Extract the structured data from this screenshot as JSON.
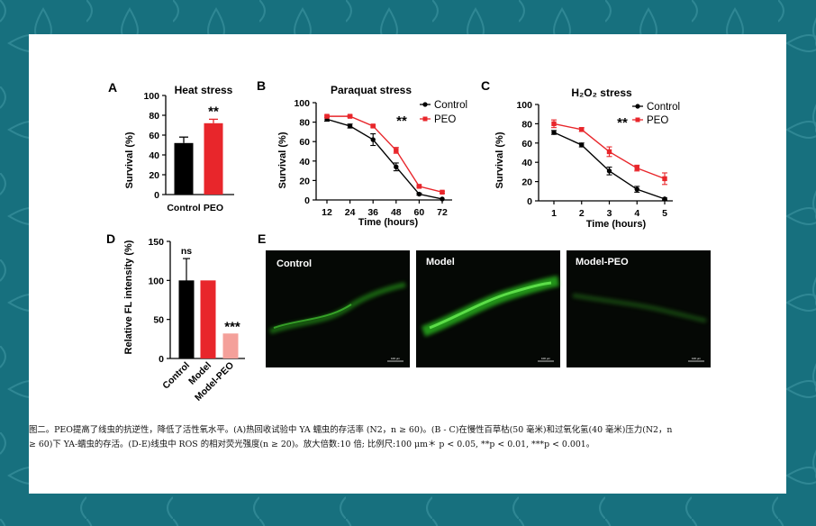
{
  "figure": {
    "panels": {
      "A": {
        "label": "A",
        "title": "Heat stress",
        "ylabel": "Survival (%)",
        "yticks": [
          "0",
          "20",
          "40",
          "60",
          "80",
          "100"
        ],
        "sig": "**"
      },
      "B": {
        "label": "B",
        "title": "Paraquat stress",
        "ylabel": "Survival (%)",
        "xlabel": "Time (hours)",
        "yticks": [
          "0",
          "20",
          "40",
          "60",
          "80",
          "100"
        ],
        "xticks": [
          "12",
          "24",
          "36",
          "48",
          "60",
          "72"
        ],
        "sig": "**",
        "legend": [
          "Control",
          "PEO"
        ]
      },
      "C": {
        "label": "C",
        "title": "H₂O₂ stress",
        "ylabel": "Survival (%)",
        "xlabel": "Time (hours)",
        "yticks": [
          "0",
          "20",
          "40",
          "60",
          "80",
          "100"
        ],
        "xticks": [
          "1",
          "2",
          "3",
          "4",
          "5"
        ],
        "sig": "**",
        "legend": [
          "Control",
          "PEO"
        ]
      },
      "D": {
        "label": "D",
        "ylabel": "Relative FL intensity (%)",
        "yticks": [
          "0",
          "50",
          "100",
          "150"
        ],
        "sigs": [
          "ns",
          "***"
        ]
      },
      "E": {
        "label": "E",
        "images": [
          "Control",
          "Model",
          "Model-PEO"
        ],
        "scale_text": "100 μm"
      }
    },
    "colors": {
      "control": "#000000",
      "peo": "#e8262b",
      "model_peo": "#f4a09a",
      "micro_bg": "#050805",
      "fluorescence": "#39d22a"
    }
  },
  "chart_data": [
    {
      "panel": "A",
      "type": "bar",
      "title": "Heat stress",
      "ylabel": "Survival (%)",
      "ylim": [
        0,
        100
      ],
      "categories": [
        "Control",
        "PEO"
      ],
      "values": [
        52,
        72
      ],
      "errors": [
        6,
        4
      ],
      "colors": [
        "#000000",
        "#e8262b"
      ],
      "annotation": "**"
    },
    {
      "panel": "B",
      "type": "line",
      "title": "Paraquat stress",
      "xlabel": "Time (hours)",
      "ylabel": "Survival (%)",
      "xlim": [
        12,
        72
      ],
      "ylim": [
        0,
        100
      ],
      "x": [
        12,
        24,
        36,
        48,
        60,
        72
      ],
      "series": [
        {
          "name": "Control",
          "color": "#000000",
          "values": [
            83,
            76,
            62,
            34,
            6,
            1
          ],
          "errors": [
            2,
            2,
            6,
            4,
            1,
            0
          ]
        },
        {
          "name": "PEO",
          "color": "#e8262b",
          "values": [
            86,
            86,
            76,
            51,
            14,
            8
          ],
          "errors": [
            1,
            1,
            1,
            3,
            1,
            1
          ]
        }
      ],
      "annotation": "**",
      "legend": "top-right"
    },
    {
      "panel": "C",
      "type": "line",
      "title": "H₂O₂ stress",
      "xlabel": "Time (hours)",
      "ylabel": "Survival (%)",
      "xlim": [
        1,
        5
      ],
      "ylim": [
        0,
        100
      ],
      "x": [
        1,
        2,
        3,
        4,
        5
      ],
      "series": [
        {
          "name": "Control",
          "color": "#000000",
          "values": [
            71,
            58,
            31,
            12,
            2
          ],
          "errors": [
            2,
            2,
            4,
            3,
            1
          ]
        },
        {
          "name": "PEO",
          "color": "#e8262b",
          "values": [
            80,
            74,
            51,
            34,
            23
          ],
          "errors": [
            4,
            2,
            5,
            3,
            6
          ]
        }
      ],
      "annotation": "**",
      "legend": "top-right"
    },
    {
      "panel": "D",
      "type": "bar",
      "ylabel": "Relative FL intensity (%)",
      "ylim": [
        0,
        150
      ],
      "categories": [
        "Control",
        "Model",
        "Model-PEO"
      ],
      "values": [
        100,
        100,
        32
      ],
      "errors": [
        28,
        0,
        0
      ],
      "colors": [
        "#000000",
        "#e8262b",
        "#f4a09a"
      ],
      "annotations": [
        "ns",
        "",
        "***"
      ]
    }
  ],
  "caption": {
    "line1": "图二。PEO提高了线虫的抗逆性，降低了活性氧水平。(A)热回收试验中 YA 蠕虫的存活率 (N2，n ≥ 60)。(B - C)在慢性百草枯(50 毫米)和过氧化氢(40 毫米)压力(N2，n",
    "line2": "≥ 60)下 YA-蠕虫的存活。(D-E)线虫中 ROS 的相对荧光强度(n ≥ 20)。放大倍数:10 倍; 比例尺:100 μm＊ p < 0.05, **p < 0.01, ***p < 0.001。"
  }
}
